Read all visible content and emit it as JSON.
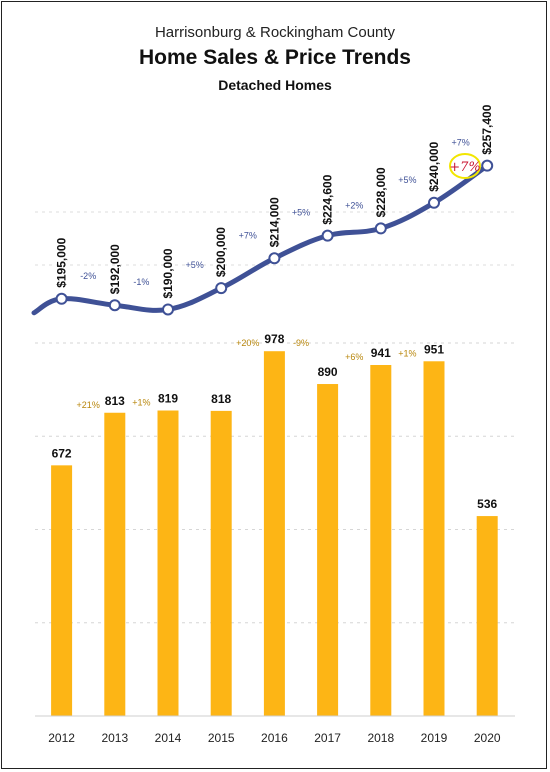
{
  "title_line1": "Harrisonburg & Rockingham County",
  "title_line2": "Home Sales & Price Trends",
  "title_line3": "Detached Homes",
  "annotation": "+7%",
  "colors": {
    "bar": "#FDB515",
    "line": "#3F5196",
    "bar_label": "#B8860B",
    "price_label": "#3F5196",
    "annotation": "#C8102E",
    "circle": "#F2E600"
  },
  "chart_data": [
    {
      "type": "line",
      "x": [
        "2012",
        "2013",
        "2014",
        "2015",
        "2016",
        "2017",
        "2018",
        "2019",
        "2020"
      ],
      "values": [
        195000,
        192000,
        190000,
        200000,
        214000,
        224600,
        228000,
        240000,
        257400
      ],
      "value_labels": [
        "$195,000",
        "$192,000",
        "$190,000",
        "$200,000",
        "$214,000",
        "$224,600",
        "$228,000",
        "$240,000",
        "$257,400"
      ],
      "change_labels": [
        "-2%",
        "-1%",
        "+5%",
        "+7%",
        "+5%",
        "+2%",
        "+5%",
        "+7%"
      ]
    },
    {
      "type": "bar",
      "categories": [
        "2012",
        "2013",
        "2014",
        "2015",
        "2016",
        "2017",
        "2018",
        "2019",
        "2020"
      ],
      "values": [
        672,
        813,
        819,
        818,
        978,
        890,
        941,
        951,
        536
      ],
      "value_labels": [
        "672",
        "813",
        "819",
        "818",
        "978",
        "890",
        "941",
        "951",
        "536"
      ],
      "change_labels": [
        "+21%",
        "+1%",
        "",
        "+20%",
        "-9%",
        "+6%",
        "+1%",
        ""
      ],
      "ylim": [
        0,
        1000
      ],
      "grid": true
    }
  ]
}
